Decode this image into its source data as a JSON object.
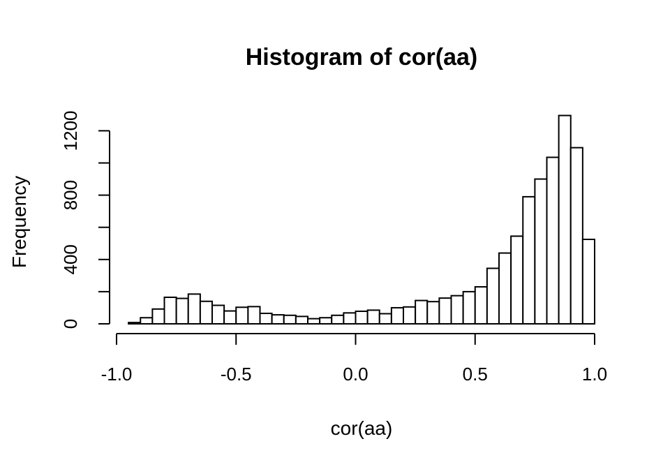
{
  "chart_data": {
    "type": "bar",
    "title": "Histogram of cor(aa)",
    "xlabel": "cor(aa)",
    "ylabel": "Frequency",
    "xlim": [
      -1.0,
      1.0
    ],
    "ylim": [
      0,
      1300
    ],
    "bin_width": 0.05,
    "bin_edges": [
      -0.95,
      -0.9,
      -0.85,
      -0.8,
      -0.75,
      -0.7,
      -0.65,
      -0.6,
      -0.55,
      -0.5,
      -0.45,
      -0.4,
      -0.35,
      -0.3,
      -0.25,
      -0.2,
      -0.15,
      -0.1,
      -0.05,
      0.0,
      0.05,
      0.1,
      0.15,
      0.2,
      0.25,
      0.3,
      0.35,
      0.4,
      0.45,
      0.5,
      0.55,
      0.6,
      0.65,
      0.7,
      0.75,
      0.8,
      0.85,
      0.9,
      0.95,
      1.0
    ],
    "values": [
      8,
      38,
      92,
      165,
      158,
      185,
      140,
      115,
      80,
      103,
      107,
      65,
      56,
      53,
      46,
      32,
      38,
      53,
      68,
      78,
      85,
      63,
      100,
      105,
      145,
      138,
      160,
      175,
      200,
      230,
      345,
      440,
      545,
      790,
      900,
      1035,
      1295,
      1095,
      525
    ],
    "x_ticks": [
      -1.0,
      -0.5,
      0.0,
      0.5,
      1.0
    ],
    "x_tick_labels": [
      "-1.0",
      "-0.5",
      "0.0",
      "0.5",
      "1.0"
    ],
    "y_ticks": [
      0,
      200,
      400,
      600,
      800,
      1000,
      1200
    ],
    "y_tick_labels": [
      "0",
      "",
      "400",
      "",
      "800",
      "",
      "1200"
    ],
    "grid": false,
    "legend": "none"
  }
}
